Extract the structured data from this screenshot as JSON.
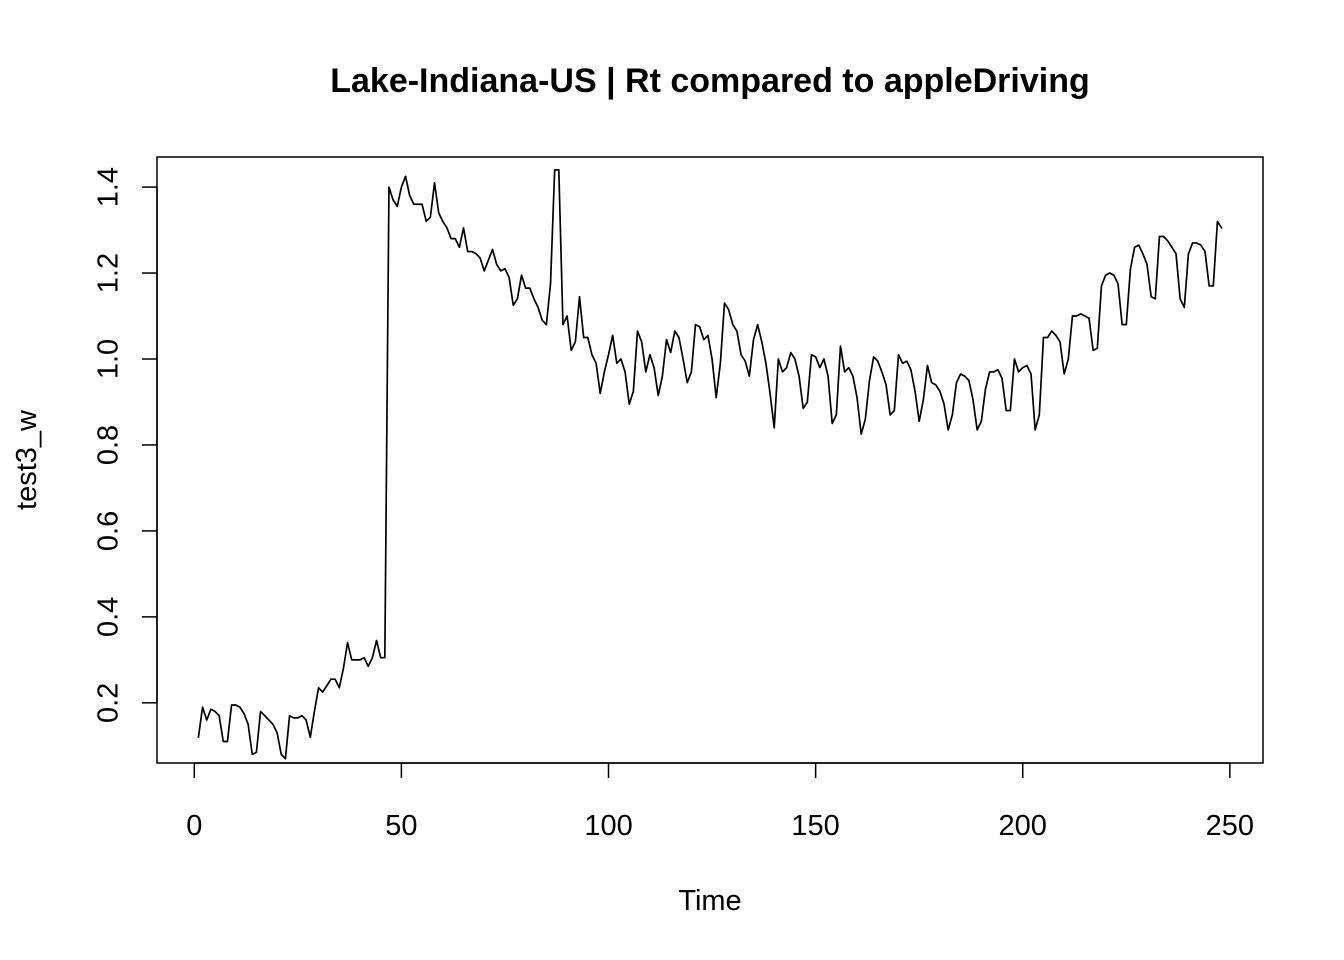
{
  "chart_data": {
    "type": "line",
    "title": "Lake-Indiana-US | Rt compared to appleDriving",
    "xlabel": "Time",
    "ylabel": "test3_w",
    "xlim": [
      -9,
      258
    ],
    "ylim": [
      0.06,
      1.47
    ],
    "xticks": [
      0,
      50,
      100,
      150,
      200,
      250
    ],
    "yticks": [
      0.2,
      0.4,
      0.6,
      0.8,
      1.0,
      1.2,
      1.4
    ],
    "xtick_labels": [
      "0",
      "50",
      "100",
      "150",
      "200",
      "250"
    ],
    "ytick_labels": [
      "0.2",
      "0.4",
      "0.6",
      "0.8",
      "1.0",
      "1.2",
      "1.4"
    ],
    "grid": false,
    "legend": "none",
    "line_color": "#000000",
    "series": [
      {
        "x": [
          1,
          2,
          3,
          4,
          5,
          6,
          7,
          8,
          9,
          10,
          11,
          12,
          13,
          14,
          15,
          16,
          17,
          18,
          19,
          20,
          21,
          22,
          23,
          24,
          25,
          26,
          27,
          28,
          29,
          30,
          31,
          32,
          33,
          34,
          35,
          36,
          37,
          38,
          39,
          40,
          41,
          42,
          43,
          44,
          45,
          46,
          47,
          48,
          49,
          50,
          51,
          52,
          53,
          54,
          55,
          56,
          57,
          58,
          59,
          60,
          61,
          62,
          63,
          64,
          65,
          66,
          67,
          68,
          69,
          70,
          71,
          72,
          73,
          74,
          75,
          76,
          77,
          78,
          79,
          80,
          81,
          82,
          83,
          84,
          85,
          86,
          87,
          88,
          89,
          90,
          91,
          92,
          93,
          94,
          95,
          96,
          97,
          98,
          99,
          100,
          101,
          102,
          103,
          104,
          105,
          106,
          107,
          108,
          109,
          110,
          111,
          112,
          113,
          114,
          115,
          116,
          117,
          118,
          119,
          120,
          121,
          122,
          123,
          124,
          125,
          126,
          127,
          128,
          129,
          130,
          131,
          132,
          133,
          134,
          135,
          136,
          137,
          138,
          139,
          140,
          141,
          142,
          143,
          144,
          145,
          146,
          147,
          148,
          149,
          150,
          151,
          152,
          153,
          154,
          155,
          156,
          157,
          158,
          159,
          160,
          161,
          162,
          163,
          164,
          165,
          166,
          167,
          168,
          169,
          170,
          171,
          172,
          173,
          174,
          175,
          176,
          177,
          178,
          179,
          180,
          181,
          182,
          183,
          184,
          185,
          186,
          187,
          188,
          189,
          190,
          191,
          192,
          193,
          194,
          195,
          196,
          197,
          198,
          199,
          200,
          201,
          202,
          203,
          204,
          205,
          206,
          207,
          208,
          209,
          210,
          211,
          212,
          213,
          214,
          215,
          216,
          217,
          218,
          219,
          220,
          221,
          222,
          223,
          224,
          225,
          226,
          227,
          228,
          229,
          230,
          231,
          232,
          233,
          234,
          235,
          236,
          237,
          238,
          239,
          240,
          241,
          242,
          243,
          244,
          245,
          246,
          247,
          248
        ],
        "y": [
          0.12,
          0.19,
          0.16,
          0.185,
          0.18,
          0.17,
          0.11,
          0.11,
          0.195,
          0.195,
          0.19,
          0.175,
          0.15,
          0.08,
          0.085,
          0.18,
          0.17,
          0.16,
          0.15,
          0.13,
          0.08,
          0.07,
          0.17,
          0.165,
          0.165,
          0.17,
          0.16,
          0.12,
          0.18,
          0.235,
          0.225,
          0.24,
          0.255,
          0.255,
          0.235,
          0.28,
          0.34,
          0.3,
          0.3,
          0.3,
          0.305,
          0.285,
          0.305,
          0.345,
          0.305,
          0.305,
          1.4,
          1.37,
          1.355,
          1.4,
          1.425,
          1.38,
          1.36,
          1.36,
          1.36,
          1.32,
          1.33,
          1.41,
          1.34,
          1.32,
          1.305,
          1.28,
          1.28,
          1.26,
          1.305,
          1.25,
          1.25,
          1.245,
          1.235,
          1.205,
          1.23,
          1.255,
          1.22,
          1.205,
          1.21,
          1.19,
          1.125,
          1.14,
          1.195,
          1.165,
          1.165,
          1.14,
          1.12,
          1.09,
          1.08,
          1.175,
          1.44,
          1.44,
          1.08,
          1.1,
          1.02,
          1.04,
          1.145,
          1.05,
          1.05,
          1.01,
          0.99,
          0.92,
          0.97,
          1.01,
          1.055,
          0.99,
          1.0,
          0.97,
          0.895,
          0.925,
          1.065,
          1.04,
          0.97,
          1.01,
          0.98,
          0.915,
          0.96,
          1.045,
          1.015,
          1.065,
          1.05,
          1.0,
          0.945,
          0.97,
          1.08,
          1.075,
          1.045,
          1.055,
          1.0,
          0.91,
          0.99,
          1.13,
          1.115,
          1.08,
          1.065,
          1.01,
          0.995,
          0.96,
          1.045,
          1.08,
          1.04,
          0.99,
          0.92,
          0.84,
          1.0,
          0.97,
          0.98,
          1.015,
          1.0,
          0.96,
          0.885,
          0.9,
          1.01,
          1.005,
          0.98,
          1.0,
          0.96,
          0.85,
          0.87,
          1.03,
          0.97,
          0.98,
          0.96,
          0.91,
          0.825,
          0.86,
          0.95,
          1.005,
          0.995,
          0.97,
          0.94,
          0.87,
          0.88,
          1.01,
          0.99,
          0.995,
          0.975,
          0.925,
          0.855,
          0.905,
          0.985,
          0.945,
          0.94,
          0.925,
          0.895,
          0.835,
          0.87,
          0.945,
          0.965,
          0.96,
          0.95,
          0.905,
          0.835,
          0.855,
          0.93,
          0.97,
          0.97,
          0.975,
          0.955,
          0.88,
          0.88,
          1.0,
          0.97,
          0.98,
          0.985,
          0.965,
          0.835,
          0.87,
          1.05,
          1.05,
          1.065,
          1.055,
          1.04,
          0.965,
          1.0,
          1.1,
          1.1,
          1.105,
          1.1,
          1.095,
          1.02,
          1.025,
          1.17,
          1.195,
          1.2,
          1.195,
          1.175,
          1.08,
          1.08,
          1.21,
          1.26,
          1.265,
          1.245,
          1.22,
          1.145,
          1.14,
          1.285,
          1.285,
          1.275,
          1.26,
          1.245,
          1.14,
          1.12,
          1.245,
          1.27,
          1.27,
          1.265,
          1.25,
          1.17,
          1.17,
          1.32,
          1.305
        ]
      }
    ]
  }
}
